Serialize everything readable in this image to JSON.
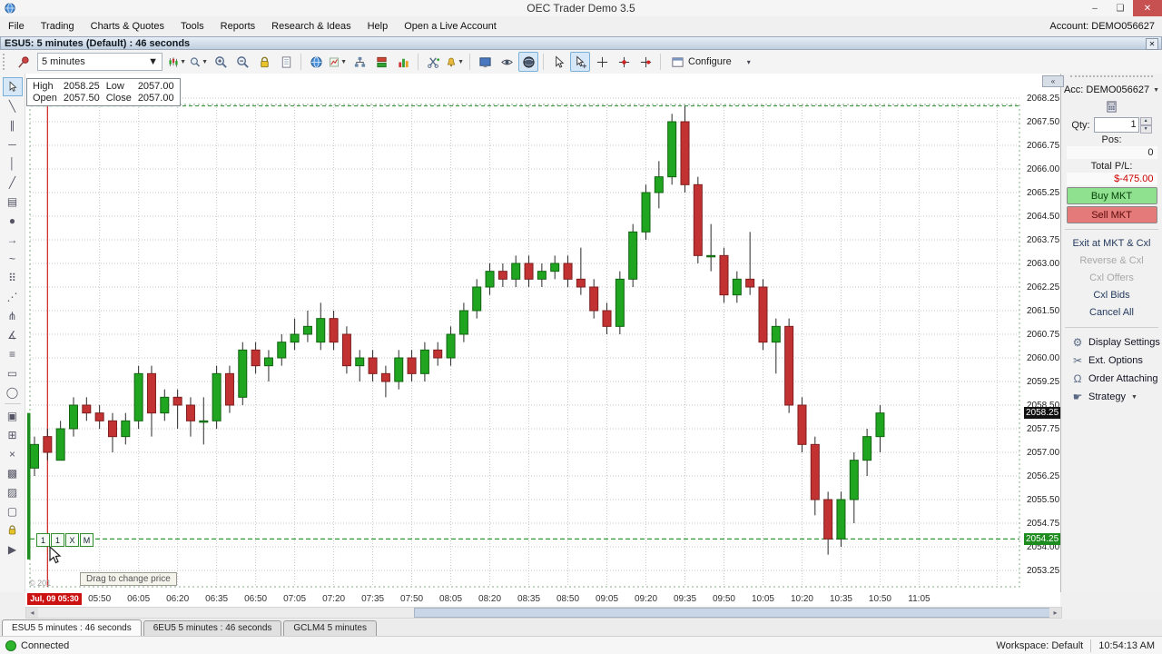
{
  "window": {
    "title": "OEC Trader Demo 3.5",
    "minimize": "–",
    "maximize": "❑",
    "close": "✕"
  },
  "menu": {
    "items": [
      "File",
      "Trading",
      "Charts & Quotes",
      "Tools",
      "Reports",
      "Research & Ideas",
      "Help",
      "Open a Live Account"
    ],
    "account_label": "Account: DEMO056627"
  },
  "chart_window": {
    "title": "ESU5: 5 minutes (Default) : 46 seconds",
    "close": "✕",
    "collapse": "«"
  },
  "toolbar": {
    "timeframe": "5 minutes",
    "configure_label": "Configure",
    "items": [
      {
        "name": "pin-icon",
        "icon": "pin"
      },
      {
        "name": "timeframe-select",
        "widget": "timeframe"
      },
      {
        "name": "chart-style-icon",
        "icon": "candles",
        "dropdown": true
      },
      {
        "name": "zoom-tool-icon",
        "icon": "mag",
        "dropdown": true
      },
      {
        "name": "zoom-in-icon",
        "icon": "magplus"
      },
      {
        "name": "zoom-out-icon",
        "icon": "magminus"
      },
      {
        "name": "lock-scale-icon",
        "icon": "lock"
      },
      {
        "name": "snapshot-icon",
        "icon": "doc"
      },
      {
        "sep": true
      },
      {
        "name": "refresh-icon",
        "icon": "globeblue"
      },
      {
        "name": "indicators-icon",
        "icon": "chartc",
        "dropdown": true
      },
      {
        "name": "linked-charts-icon",
        "icon": "sitemap"
      },
      {
        "name": "layers-icon",
        "icon": "layers"
      },
      {
        "name": "volume-icon",
        "icon": "barchart"
      },
      {
        "sep": true
      },
      {
        "name": "cut-add-icon",
        "icon": "scissorsplus"
      },
      {
        "name": "alerts-icon",
        "icon": "bell",
        "dropdown": true
      },
      {
        "sep": true
      },
      {
        "name": "screen-icon",
        "icon": "screen"
      },
      {
        "name": "visibility-icon",
        "icon": "eye"
      },
      {
        "name": "globe-icon",
        "icon": "globedark",
        "active": true
      },
      {
        "sep": true
      },
      {
        "name": "pointer-icon",
        "icon": "cursor"
      },
      {
        "name": "pointer-cross-icon",
        "icon": "cursorcross",
        "active": true
      },
      {
        "name": "crosshair-icon",
        "icon": "cross"
      },
      {
        "name": "crosshair-dot-icon",
        "icon": "crossdot"
      },
      {
        "name": "crosshair-track-icon",
        "icon": "crossdot2"
      },
      {
        "sep": true
      },
      {
        "name": "configure-button",
        "widget": "configure",
        "icon": "window"
      },
      {
        "name": "toolbar-overflow",
        "glyph": "▾"
      }
    ]
  },
  "left_toolbar": {
    "tools": [
      {
        "name": "pointer-tool",
        "icon": "cursor",
        "active": true
      },
      {
        "name": "trendline-tool",
        "glyph": "╲"
      },
      {
        "name": "parallel-lines-tool",
        "glyph": "∥"
      },
      {
        "name": "horizontal-line-tool",
        "glyph": "─"
      },
      {
        "name": "vertical-line-tool",
        "glyph": "│"
      },
      {
        "name": "ray-tool",
        "glyph": "╱"
      },
      {
        "name": "note-tool",
        "glyph": "▤"
      },
      {
        "name": "filled-ellipse-tool",
        "glyph": "●"
      },
      {
        "name": "arrow-tool",
        "glyph": "→"
      },
      {
        "name": "freehand-tool",
        "glyph": "~"
      },
      {
        "name": "grid-points-tool",
        "glyph": "⠿"
      },
      {
        "name": "fibonacci-tool",
        "glyph": "⋰"
      },
      {
        "name": "pitchfork-tool",
        "glyph": "⋔"
      },
      {
        "name": "fan-lines-tool",
        "glyph": "∡"
      },
      {
        "name": "hatch-tool",
        "glyph": "≡"
      },
      {
        "name": "rectangle-tool",
        "glyph": "▭"
      },
      {
        "name": "ellipse-tool",
        "glyph": "◯"
      },
      {
        "sep": true
      },
      {
        "name": "copy-object-tool",
        "glyph": "▣"
      },
      {
        "name": "properties-tool",
        "glyph": "⊞"
      },
      {
        "name": "delete-tool",
        "glyph": "×"
      },
      {
        "name": "bring-front-tool",
        "glyph": "▩"
      },
      {
        "name": "send-back-tool",
        "glyph": "▨"
      },
      {
        "name": "select-region-tool",
        "glyph": "▢"
      },
      {
        "name": "lock-tool",
        "icon": "lock"
      },
      {
        "name": "expand-strip-tool",
        "glyph": "▶"
      }
    ]
  },
  "info_box": {
    "high_label": "High",
    "high": "2058.25",
    "low_label": "Low",
    "low": "2057.00",
    "open_label": "Open",
    "open": "2057.50",
    "close_label": "Close",
    "close": "2057.00"
  },
  "order_widget": {
    "boxes": [
      "1",
      "1",
      "X",
      "M"
    ],
    "tooltip": "Drag to change price"
  },
  "copyright_partial": "© 201",
  "right_panel": {
    "account_label": "Acc: DEMO056627",
    "qty_label": "Qty:",
    "qty_value": "1",
    "pos_label": "Pos:",
    "pos_value": "0",
    "pl_label": "Total P/L:",
    "pl_value": "$-475.00",
    "buy_button": "Buy MKT",
    "sell_button": "Sell MKT",
    "actions": [
      {
        "label": "Exit at MKT & Cxl",
        "enabled": true
      },
      {
        "label": "Reverse & Cxl",
        "enabled": false
      },
      {
        "label": "Cxl Offers",
        "enabled": false
      },
      {
        "label": "Cxl Bids",
        "enabled": true
      },
      {
        "label": "Cancel All",
        "enabled": true
      }
    ],
    "settings": [
      {
        "label": "Display Settings",
        "icon": "⚙",
        "name": "display-settings"
      },
      {
        "label": "Ext. Options",
        "icon": "✂",
        "name": "ext-options"
      },
      {
        "label": "Order Attaching",
        "icon": "Ω",
        "name": "order-attaching"
      },
      {
        "label": "Strategy",
        "icon": "☛",
        "name": "strategy",
        "dropdown": true
      }
    ]
  },
  "tabs": [
    {
      "label": "ESU5 5 minutes : 46 seconds",
      "active": true
    },
    {
      "label": "6EU5 5 minutes : 46 seconds",
      "active": false
    },
    {
      "label": "GCLM4 5 minutes",
      "active": false
    }
  ],
  "status_bar": {
    "connection": "Connected",
    "workspace": "Workspace: Default",
    "time": "10:54:13 AM"
  },
  "colors": {
    "up": "#1fa51f",
    "up_border": "#126312",
    "down": "#c23232",
    "down_border": "#7e1d1d",
    "wick": "#2a2a2a",
    "grid": "#c8c8c8",
    "frame": "#85a985",
    "session_line": "#cc2222",
    "order_line": "#1e8c1e",
    "last_price_badge": "#111111",
    "order_badge": "#1e8c1e",
    "date_badge": "#cc1111",
    "pl_negative": "#cc0000",
    "buy_bg": "#8fe08f",
    "sell_bg": "#e57a7a",
    "connected_dot": "#2db52d"
  },
  "chart_data": {
    "type": "candlestick",
    "symbol": "ESU5",
    "interval": "5 minutes",
    "title": "ESU5: 5 minutes (Default) : 46 seconds",
    "ylim": [
      2053.25,
      2068.25
    ],
    "ytick_step": 0.75,
    "ytick_labels": [
      "2068.25",
      "2067.50",
      "2066.75",
      "2066.00",
      "2065.25",
      "2064.50",
      "2063.75",
      "2063.00",
      "2062.25",
      "2061.50",
      "2060.75",
      "2060.00",
      "2059.25",
      "2058.50",
      "2057.75",
      "2057.00",
      "2056.25",
      "2055.50",
      "2054.75",
      "2054.00",
      "2053.25"
    ],
    "x_first_label": "Jul, 09 05:30",
    "xticks": [
      "05:50",
      "06:05",
      "06:20",
      "06:35",
      "06:50",
      "07:05",
      "07:20",
      "07:35",
      "07:50",
      "08:05",
      "08:20",
      "08:35",
      "08:50",
      "09:05",
      "09:20",
      "09:35",
      "09:50",
      "10:05",
      "10:20",
      "10:35",
      "10:50",
      "11:05"
    ],
    "last_price": 2058.25,
    "order_price": 2054.25,
    "session_high_line": 2068.0,
    "session_start_index": 1,
    "times": [
      "05:25",
      "05:30",
      "05:35",
      "05:40",
      "05:45",
      "05:50",
      "05:55",
      "06:00",
      "06:05",
      "06:10",
      "06:15",
      "06:20",
      "06:25",
      "06:30",
      "06:35",
      "06:40",
      "06:45",
      "06:50",
      "06:55",
      "07:00",
      "07:05",
      "07:10",
      "07:15",
      "07:20",
      "07:25",
      "07:30",
      "07:35",
      "07:40",
      "07:45",
      "07:50",
      "07:55",
      "08:00",
      "08:05",
      "08:10",
      "08:15",
      "08:20",
      "08:25",
      "08:30",
      "08:35",
      "08:40",
      "08:45",
      "08:50",
      "08:55",
      "09:00",
      "09:05",
      "09:10",
      "09:15",
      "09:20",
      "09:25",
      "09:30",
      "09:35",
      "09:40",
      "09:45",
      "09:50",
      "09:55",
      "10:00",
      "10:05",
      "10:10",
      "10:15",
      "10:20",
      "10:25",
      "10:30",
      "10:35",
      "10:40",
      "10:45",
      "10:50"
    ],
    "ohlc": [
      [
        2056.5,
        2057.5,
        2056.25,
        2057.25
      ],
      [
        2057.5,
        2057.75,
        2056.75,
        2057.0
      ],
      [
        2056.75,
        2058.0,
        2056.75,
        2057.75
      ],
      [
        2057.75,
        2058.75,
        2057.5,
        2058.5
      ],
      [
        2058.5,
        2058.75,
        2058.0,
        2058.25
      ],
      [
        2058.25,
        2058.5,
        2057.75,
        2058.0
      ],
      [
        2058.0,
        2058.25,
        2057.0,
        2057.5
      ],
      [
        2057.5,
        2058.25,
        2057.25,
        2058.0
      ],
      [
        2058.0,
        2059.75,
        2057.75,
        2059.5
      ],
      [
        2059.5,
        2059.75,
        2057.5,
        2058.25
      ],
      [
        2058.25,
        2059.0,
        2058.0,
        2058.75
      ],
      [
        2058.75,
        2059.0,
        2057.75,
        2058.5
      ],
      [
        2058.5,
        2058.75,
        2057.5,
        2058.0
      ],
      [
        2058.0,
        2058.75,
        2057.25,
        2058.0
      ],
      [
        2058.0,
        2059.75,
        2057.75,
        2059.5
      ],
      [
        2059.5,
        2059.75,
        2058.25,
        2058.5
      ],
      [
        2058.75,
        2060.5,
        2058.5,
        2060.25
      ],
      [
        2060.25,
        2060.5,
        2059.5,
        2059.75
      ],
      [
        2059.75,
        2060.25,
        2059.25,
        2060.0
      ],
      [
        2060.0,
        2060.75,
        2059.75,
        2060.5
      ],
      [
        2060.5,
        2061.25,
        2060.25,
        2060.75
      ],
      [
        2060.75,
        2061.5,
        2060.5,
        2061.0
      ],
      [
        2060.5,
        2061.75,
        2060.25,
        2061.25
      ],
      [
        2061.25,
        2061.5,
        2060.25,
        2060.5
      ],
      [
        2060.75,
        2061.0,
        2059.5,
        2059.75
      ],
      [
        2059.75,
        2060.25,
        2059.25,
        2060.0
      ],
      [
        2060.0,
        2060.25,
        2059.25,
        2059.5
      ],
      [
        2059.5,
        2059.75,
        2058.75,
        2059.25
      ],
      [
        2059.25,
        2060.25,
        2059.0,
        2060.0
      ],
      [
        2060.0,
        2060.25,
        2059.25,
        2059.5
      ],
      [
        2059.5,
        2060.5,
        2059.25,
        2060.25
      ],
      [
        2060.25,
        2060.5,
        2059.75,
        2060.0
      ],
      [
        2060.0,
        2061.0,
        2059.75,
        2060.75
      ],
      [
        2060.75,
        2061.75,
        2060.5,
        2061.5
      ],
      [
        2061.5,
        2062.5,
        2061.25,
        2062.25
      ],
      [
        2062.25,
        2063.0,
        2062.0,
        2062.75
      ],
      [
        2062.75,
        2063.0,
        2062.25,
        2062.5
      ],
      [
        2062.5,
        2063.25,
        2062.25,
        2063.0
      ],
      [
        2063.0,
        2063.25,
        2062.25,
        2062.5
      ],
      [
        2062.5,
        2063.0,
        2062.25,
        2062.75
      ],
      [
        2062.75,
        2063.25,
        2062.5,
        2063.0
      ],
      [
        2063.0,
        2063.25,
        2062.25,
        2062.5
      ],
      [
        2062.5,
        2063.5,
        2062.0,
        2062.25
      ],
      [
        2062.25,
        2062.5,
        2061.25,
        2061.5
      ],
      [
        2061.5,
        2061.75,
        2060.75,
        2061.0
      ],
      [
        2061.0,
        2062.75,
        2060.75,
        2062.5
      ],
      [
        2062.5,
        2064.25,
        2062.25,
        2064.0
      ],
      [
        2064.0,
        2065.5,
        2063.75,
        2065.25
      ],
      [
        2065.25,
        2066.25,
        2064.75,
        2065.75
      ],
      [
        2065.75,
        2067.75,
        2065.5,
        2067.5
      ],
      [
        2067.5,
        2068.0,
        2065.25,
        2065.5
      ],
      [
        2065.5,
        2065.75,
        2063.0,
        2063.25
      ],
      [
        2063.25,
        2064.25,
        2062.75,
        2063.25
      ],
      [
        2063.25,
        2063.5,
        2061.75,
        2062.0
      ],
      [
        2062.0,
        2062.75,
        2061.75,
        2062.5
      ],
      [
        2062.5,
        2064.0,
        2062.0,
        2062.25
      ],
      [
        2062.25,
        2062.5,
        2060.25,
        2060.5
      ],
      [
        2060.5,
        2061.25,
        2059.5,
        2061.0
      ],
      [
        2061.0,
        2061.25,
        2058.25,
        2058.5
      ],
      [
        2058.5,
        2058.75,
        2057.0,
        2057.25
      ],
      [
        2057.25,
        2057.5,
        2055.0,
        2055.5
      ],
      [
        2055.5,
        2055.75,
        2053.75,
        2054.25
      ],
      [
        2054.25,
        2055.75,
        2054.0,
        2055.5
      ],
      [
        2055.5,
        2057.0,
        2054.75,
        2056.75
      ],
      [
        2056.75,
        2057.75,
        2056.25,
        2057.5
      ],
      [
        2057.5,
        2058.5,
        2057.0,
        2058.25
      ]
    ]
  }
}
